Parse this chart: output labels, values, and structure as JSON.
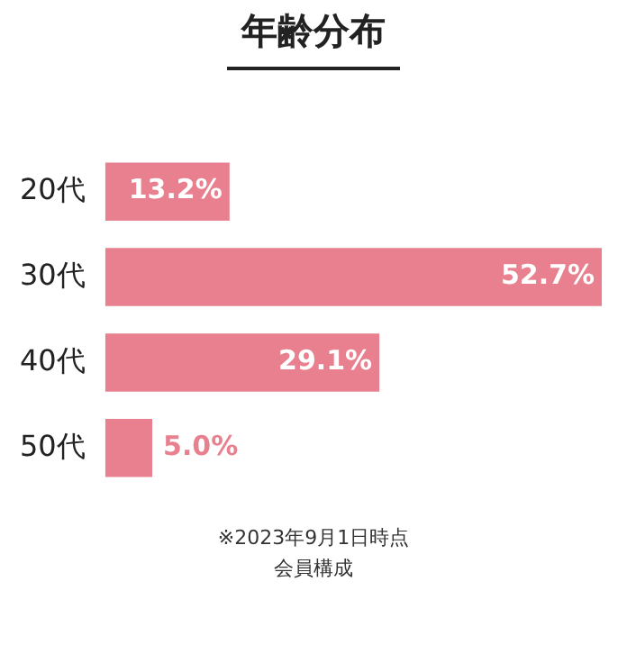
{
  "chart_data": {
    "type": "bar",
    "orientation": "horizontal",
    "title": "年齢分布",
    "categories": [
      "20代",
      "30代",
      "40代",
      "50代"
    ],
    "values": [
      13.2,
      52.7,
      29.1,
      5.0
    ],
    "value_labels": [
      "13.2%",
      "52.7%",
      "29.1%",
      "5.0%"
    ],
    "color": "#e8808f",
    "legend": false,
    "annotations": [
      "※2023年9月1日時点",
      "会員構成"
    ]
  }
}
